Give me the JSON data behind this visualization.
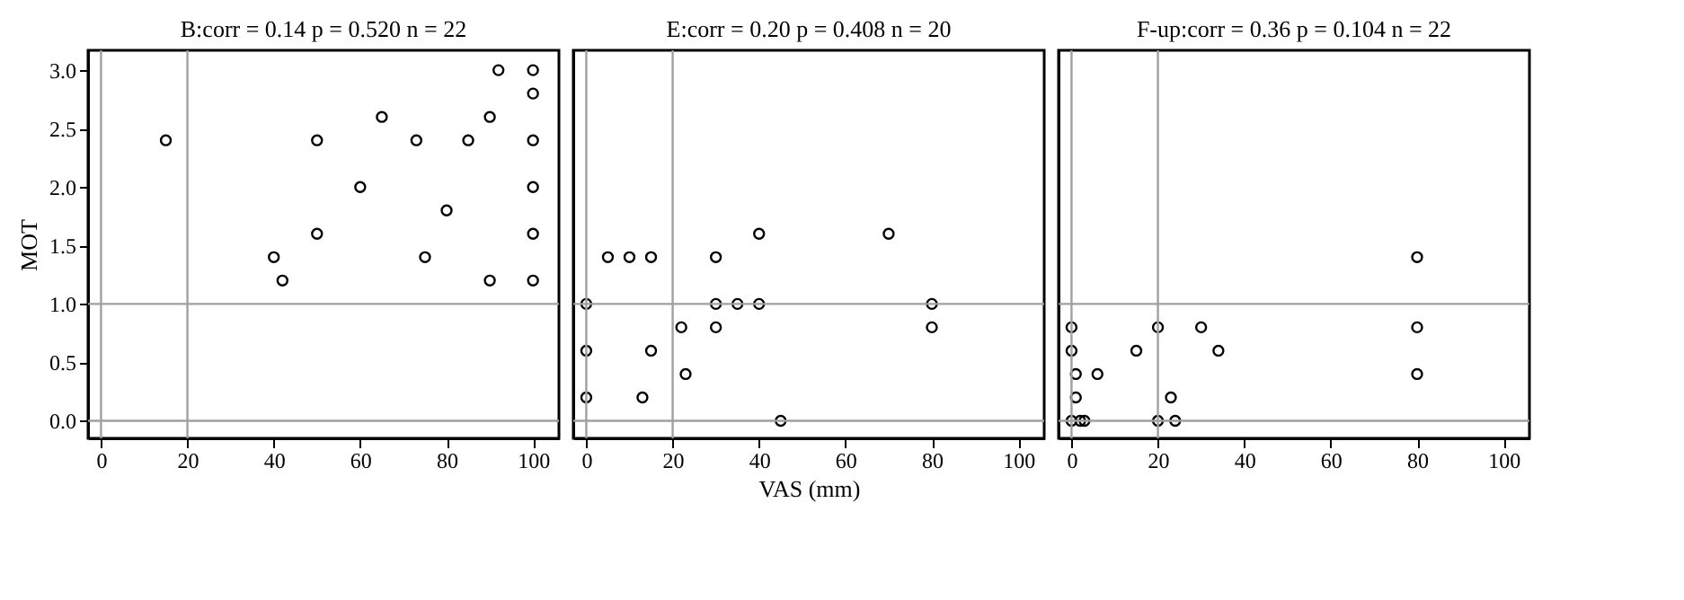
{
  "chart_data": [
    {
      "type": "scatter",
      "title": "B:corr =  0.14 p = 0.520 n = 22",
      "ylabel": "MOT",
      "marker": "circle",
      "grid": false,
      "tick_labels": "xy",
      "x": [
        92,
        100,
        100,
        65,
        90,
        15,
        50,
        73,
        85,
        100,
        60,
        100,
        80,
        50,
        100,
        40,
        75,
        42,
        90,
        100
      ],
      "values": [
        3.0,
        3.0,
        2.8,
        2.6,
        2.6,
        2.4,
        2.4,
        2.4,
        2.4,
        2.4,
        2.0,
        2.0,
        1.8,
        1.6,
        1.6,
        1.4,
        1.4,
        1.2,
        1.2,
        1.2
      ],
      "xlim": [
        -3,
        106
      ],
      "xticks": [
        0,
        20,
        40,
        60,
        80,
        100
      ],
      "ylim": [
        -0.15,
        3.17
      ],
      "yticks": [
        {
          "value": 0,
          "label": "0.0"
        },
        {
          "value": 0.5,
          "label": "0.5"
        },
        {
          "value": 1,
          "label": "1.0"
        },
        {
          "value": 1.5,
          "label": "1.5"
        },
        {
          "value": 2,
          "label": "2.0"
        },
        {
          "value": 2.5,
          "label": "2.5"
        },
        {
          "value": 3,
          "label": "3.0"
        }
      ],
      "ref_lines": [
        {
          "axis": "x",
          "value": 0,
          "color": "#a0a0a0"
        },
        {
          "axis": "x",
          "value": 20,
          "color": "#a0a0a0"
        },
        {
          "axis": "y",
          "value": 0,
          "color": "#a0a0a0"
        },
        {
          "axis": "y",
          "value": 1,
          "color": "#a0a0a0"
        }
      ]
    },
    {
      "type": "scatter",
      "title": "E:corr =  0.20 p = 0.408 n = 20",
      "xlabel": "VAS (mm)",
      "marker": "circle",
      "grid": false,
      "tick_labels": "x",
      "x": [
        40,
        70,
        5,
        10,
        15,
        30,
        0,
        30,
        35,
        40,
        80,
        22,
        30,
        80,
        0,
        15,
        23,
        0,
        13,
        45
      ],
      "values": [
        1.6,
        1.6,
        1.4,
        1.4,
        1.4,
        1.4,
        1.0,
        1.0,
        1.0,
        1.0,
        1.0,
        0.8,
        0.8,
        0.8,
        0.6,
        0.6,
        0.4,
        0.2,
        0.2,
        0.0
      ],
      "xlim": [
        -3,
        106
      ],
      "xticks": [
        0,
        20,
        40,
        60,
        80,
        100
      ],
      "ylim": [
        -0.15,
        3.17
      ],
      "ref_lines": [
        {
          "axis": "x",
          "value": 0,
          "color": "#a0a0a0"
        },
        {
          "axis": "x",
          "value": 20,
          "color": "#a0a0a0"
        },
        {
          "axis": "y",
          "value": 0,
          "color": "#a0a0a0"
        },
        {
          "axis": "y",
          "value": 1,
          "color": "#a0a0a0"
        }
      ]
    },
    {
      "type": "scatter",
      "title": "F-up:corr =  0.36 p = 0.104 n = 22",
      "marker": "circle",
      "grid": false,
      "tick_labels": "x",
      "x": [
        80,
        0,
        20,
        30,
        80,
        0,
        15,
        34,
        1,
        6,
        80,
        1,
        23,
        0,
        2,
        3,
        20,
        24
      ],
      "values": [
        1.4,
        0.8,
        0.8,
        0.8,
        0.8,
        0.6,
        0.6,
        0.6,
        0.4,
        0.4,
        0.4,
        0.2,
        0.2,
        0.0,
        0.0,
        0.0,
        0.0,
        0.0
      ],
      "xlim": [
        -3,
        106
      ],
      "xticks": [
        0,
        20,
        40,
        60,
        80,
        100
      ],
      "ylim": [
        -0.15,
        3.17
      ],
      "ref_lines": [
        {
          "axis": "x",
          "value": 0,
          "color": "#a0a0a0"
        },
        {
          "axis": "x",
          "value": 20,
          "color": "#a0a0a0"
        },
        {
          "axis": "y",
          "value": 0,
          "color": "#a0a0a0"
        },
        {
          "axis": "y",
          "value": 1,
          "color": "#a0a0a0"
        }
      ]
    }
  ]
}
